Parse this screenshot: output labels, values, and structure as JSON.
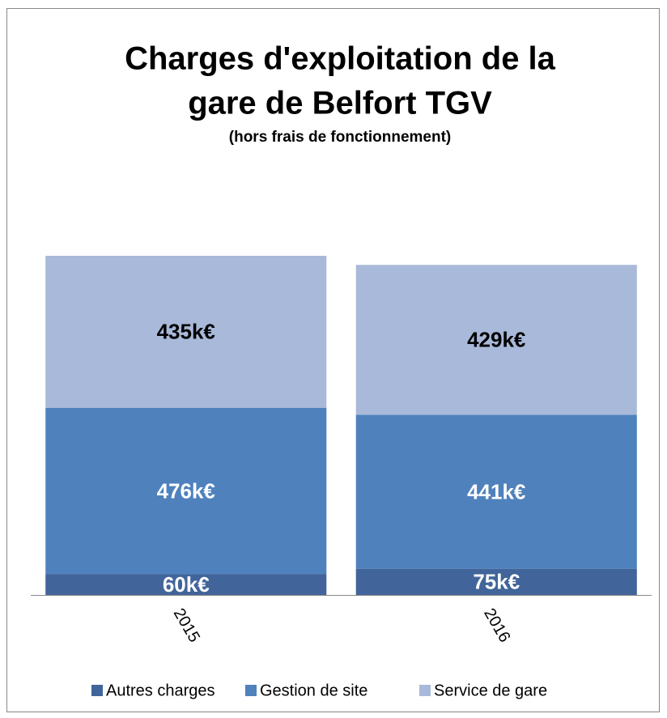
{
  "chart_data": {
    "type": "stacked_bar",
    "title": [
      "Charges d'exploitation de la",
      "gare de Belfort TGV"
    ],
    "subtitle": "(hors frais de fonctionnement)",
    "categories": [
      "2015",
      "2016"
    ],
    "series": [
      {
        "name": "Autres charges",
        "color": "#41659a",
        "values": [
          60,
          75
        ],
        "value_labels": [
          "60k€",
          "75k€"
        ],
        "label_color": "#ffffff"
      },
      {
        "name": "Gestion de site",
        "color": "#4f81bd",
        "values": [
          476,
          441
        ],
        "value_labels": [
          "476k€",
          "441k€"
        ],
        "label_color": "#ffffff"
      },
      {
        "name": "Service de gare",
        "color": "#a8b9d9",
        "values": [
          435,
          429
        ],
        "value_labels": [
          "435k€",
          "429k€"
        ],
        "label_color": "#000000"
      }
    ],
    "legend": "bottom"
  }
}
